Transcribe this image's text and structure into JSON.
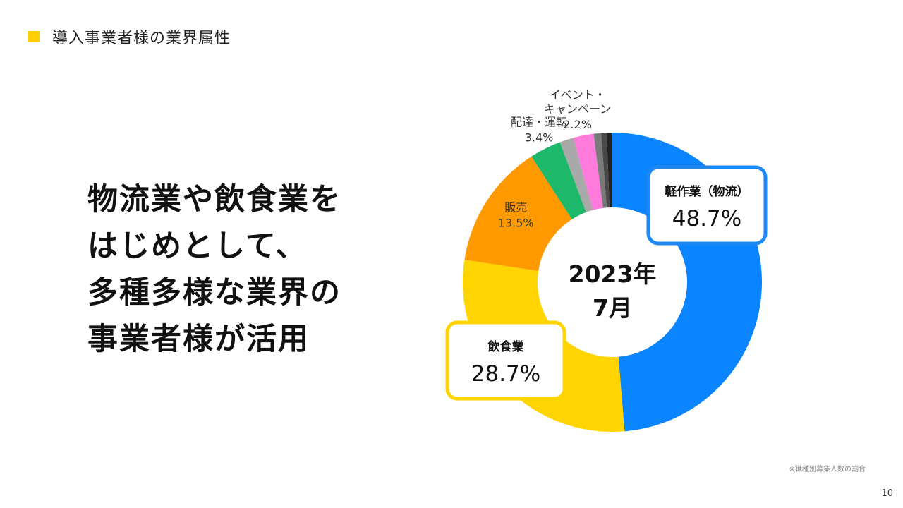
{
  "section": {
    "title": "導入事業者様の業界属性",
    "accent_color": "#FFD000"
  },
  "headline": {
    "lines": [
      "物流業や飲食業を",
      "はじめとして、",
      "多種多様な業界の",
      "事業者様が活用"
    ]
  },
  "chart_data": {
    "type": "pie",
    "style": "donut",
    "center_label": [
      "2023年",
      "7月"
    ],
    "slices": [
      {
        "name": "軽作業（物流）",
        "display_name": "軽作業（物流）",
        "value": 48.7,
        "label": "48.7%",
        "color": "#0A84FF",
        "callout": "boxed",
        "box_color": "#1E88F5"
      },
      {
        "name": "飲食業",
        "display_name": "飲食業",
        "value": 28.7,
        "label": "28.7%",
        "color": "#FFD400",
        "callout": "boxed",
        "box_color": "#FFD400"
      },
      {
        "name": "販売",
        "display_name": "販売",
        "value": 13.5,
        "label": "13.5%",
        "color": "#FF9900",
        "callout": "inside"
      },
      {
        "name": "配達・運転",
        "display_name": "配達・運転",
        "value": 3.4,
        "label": "3.4%",
        "color": "#1DB86A",
        "callout": "outside"
      },
      {
        "value": 1.5,
        "color": "#A9A9A9"
      },
      {
        "name": "イベント・キャンペーン",
        "display_name": "イベント・\nキャンペーン",
        "value": 2.2,
        "label": "2.2%",
        "color": "#FF7ADB",
        "callout": "outside"
      },
      {
        "value": 0.8,
        "color": "#7A7A7A"
      },
      {
        "value": 0.6,
        "color": "#4A4A4A"
      },
      {
        "value": 0.6,
        "color": "#222222"
      }
    ]
  },
  "footnote": "※職種別募集人数の割合",
  "page_number": "10"
}
